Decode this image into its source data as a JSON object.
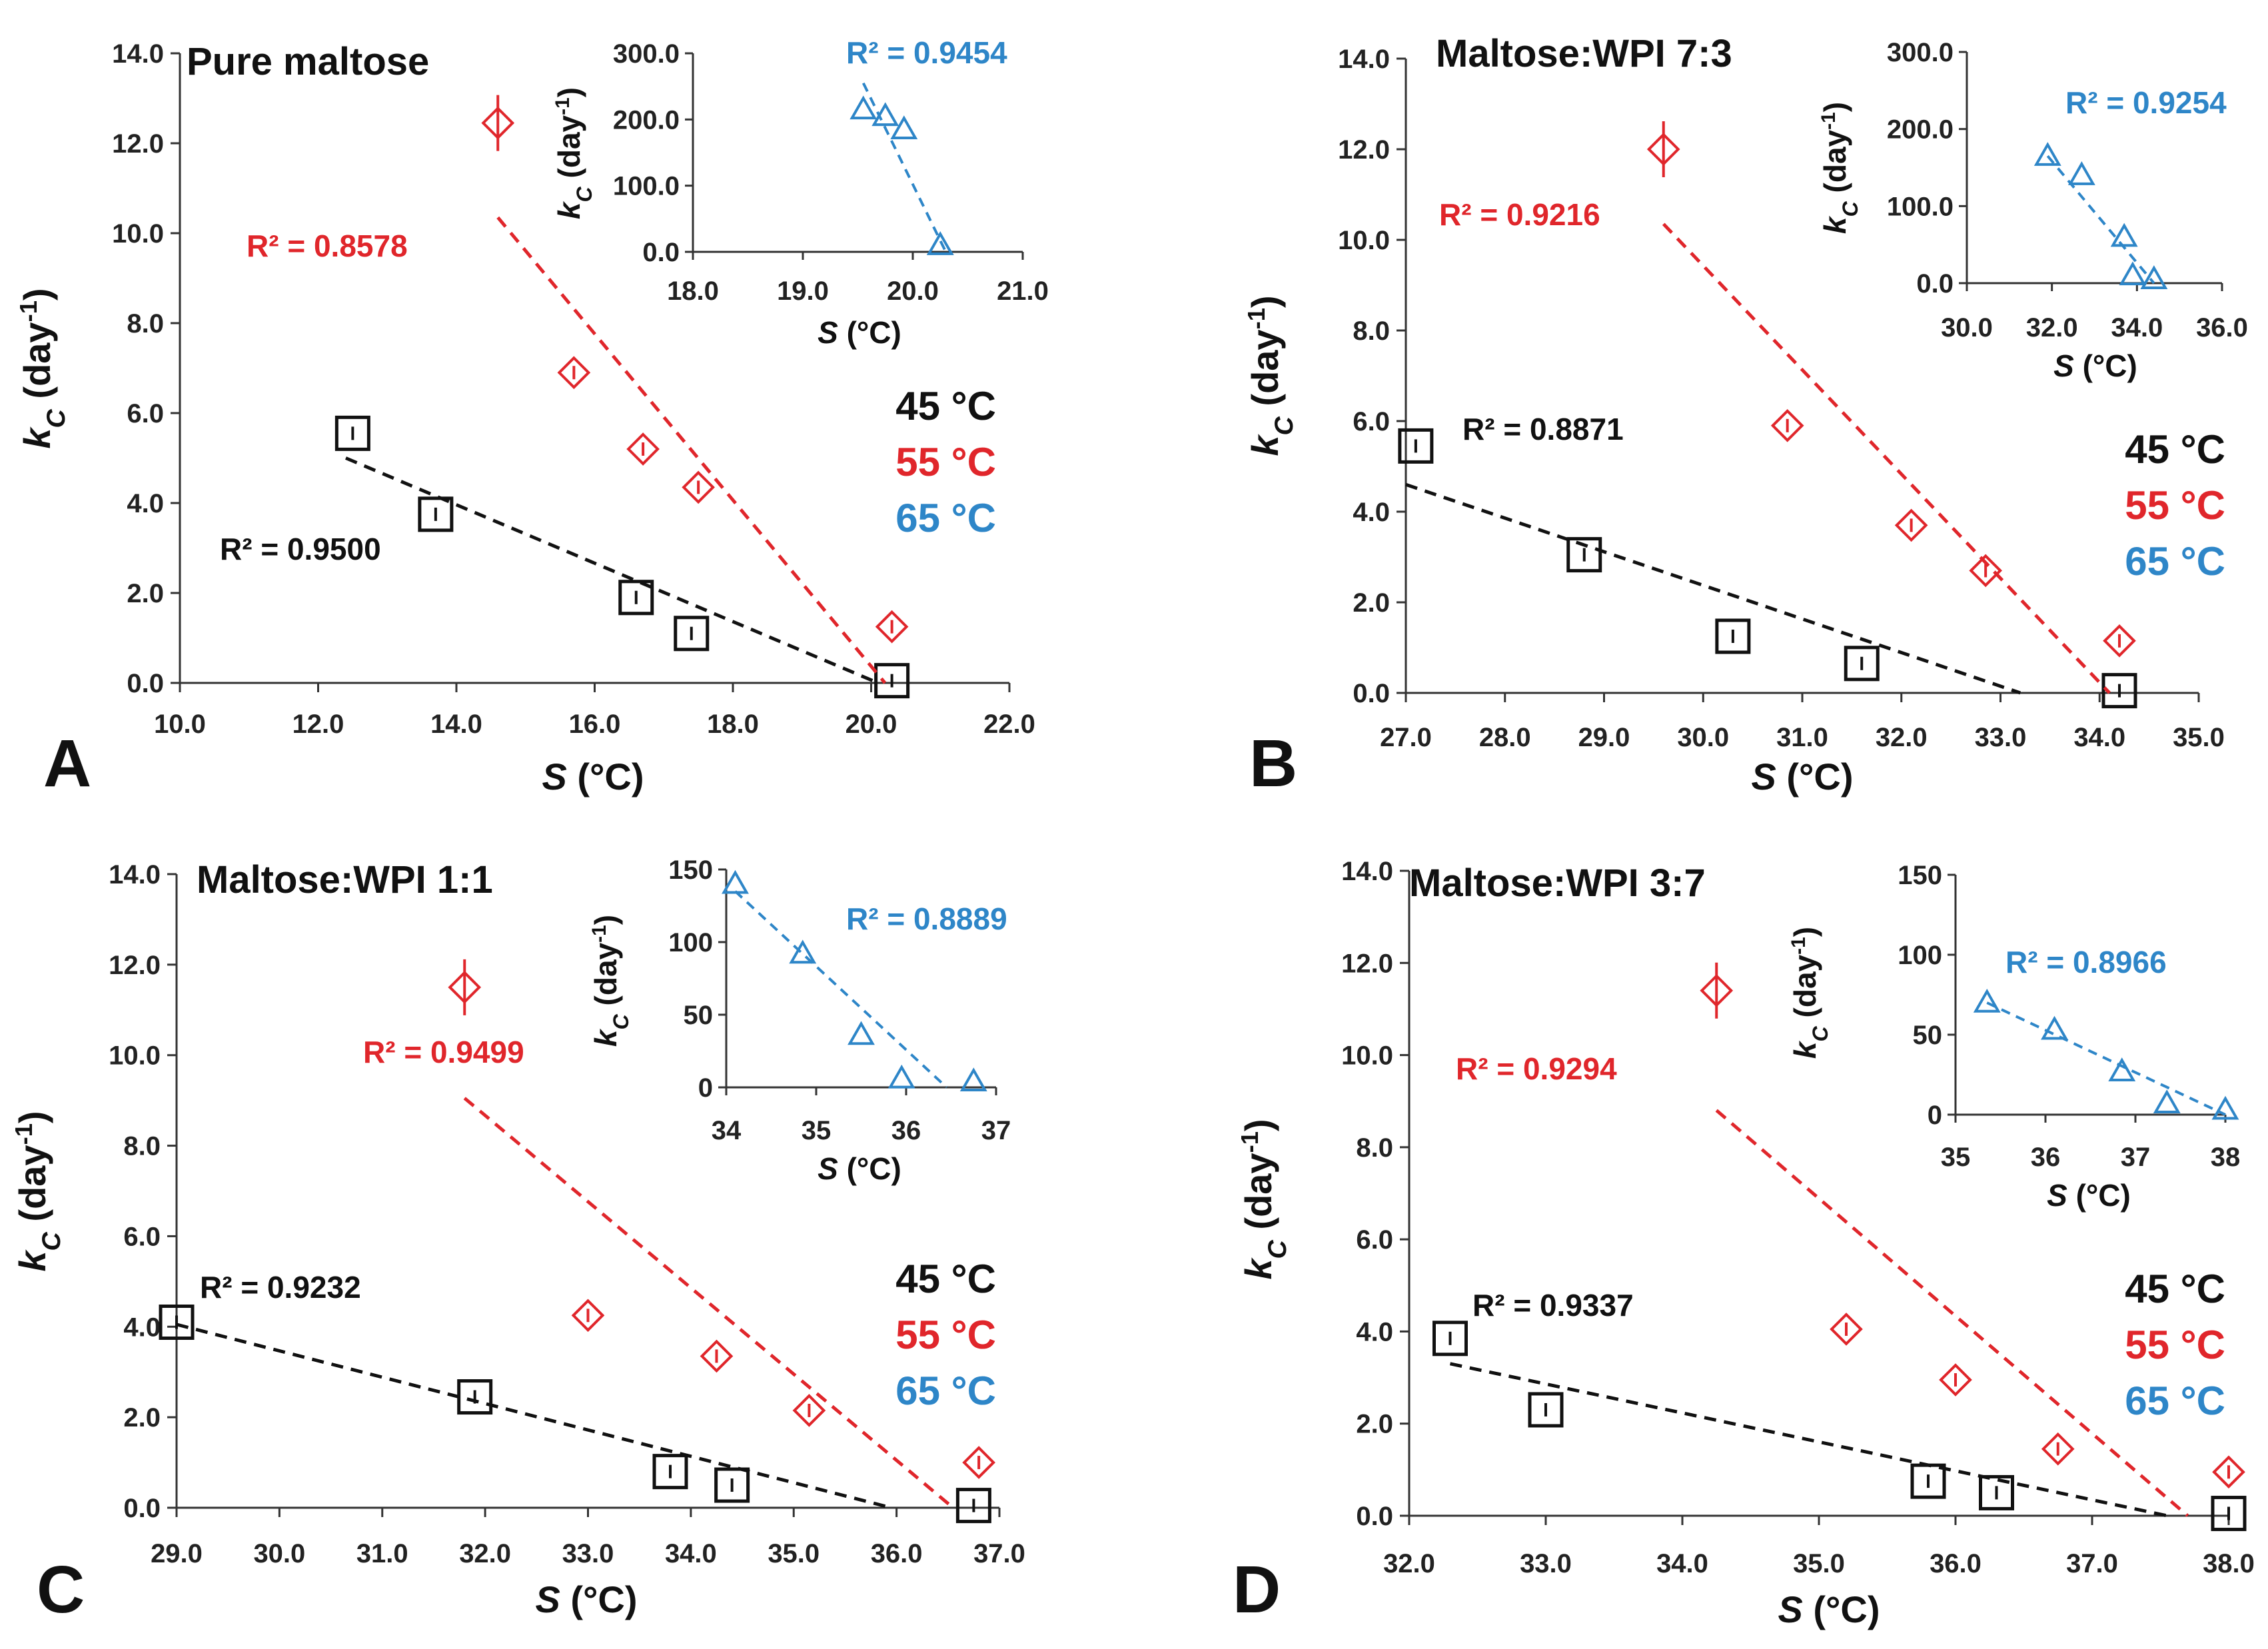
{
  "colors": {
    "black": "#111111",
    "red": "#e0262b",
    "blue": "#2e86c8"
  },
  "chart_data": [
    {
      "panel": "A",
      "type": "scatter",
      "title": "Pure maltose",
      "xlabel": "S (°C)",
      "ylabel": "kC (day-1)",
      "xlim": [
        10,
        22
      ],
      "ylim": [
        0,
        14
      ],
      "xticks": [
        10,
        12,
        14,
        16,
        18,
        20,
        22
      ],
      "xtick_labels": [
        "10.0",
        "12.0",
        "14.0",
        "16.0",
        "18.0",
        "20.0",
        "22.0"
      ],
      "ytick_labels": [
        "0.0",
        "2.0",
        "4.0",
        "6.0",
        "8.0",
        "10.0",
        "12.0",
        "14.0"
      ],
      "legend": [
        "45 °C",
        "55 °C",
        "65 °C"
      ],
      "series": [
        {
          "name": "45 °C",
          "color": "#111111",
          "marker": "square",
          "x": [
            12.5,
            13.7,
            16.6,
            17.4,
            20.3
          ],
          "y": [
            5.55,
            3.75,
            1.9,
            1.1,
            0.05
          ],
          "fit": [
            [
              12.4,
              5.0
            ],
            [
              20.1,
              0.0
            ]
          ],
          "r2_label": "R² = 0.9500"
        },
        {
          "name": "55 °C",
          "color": "#e0262b",
          "marker": "diamond",
          "x": [
            14.6,
            15.7,
            16.7,
            17.5,
            20.3
          ],
          "y": [
            12.45,
            6.9,
            5.2,
            4.35,
            1.25
          ],
          "fit": [
            [
              14.6,
              10.35
            ],
            [
              20.2,
              0.0
            ]
          ],
          "r2_label": "R² = 0.8578"
        }
      ],
      "inset": {
        "xlim": [
          18,
          21
        ],
        "ylim": [
          0,
          300
        ],
        "xticks": [
          18,
          19,
          20,
          21
        ],
        "xtick_labels": [
          "18.0",
          "19.0",
          "20.0",
          "21.0"
        ],
        "yticks": [
          0,
          100,
          200,
          300
        ],
        "ytick_labels": [
          "0.0",
          "100.0",
          "200.0",
          "300.0"
        ],
        "xlabel": "S (°C)",
        "ylabel": "kC (day-1)",
        "series": {
          "name": "65 °C",
          "color": "#2e86c8",
          "marker": "triangle",
          "x": [
            19.55,
            19.75,
            19.92,
            20.25
          ],
          "y": [
            215,
            205,
            185,
            10
          ],
          "fit": [
            [
              19.55,
              255
            ],
            [
              20.3,
              0
            ]
          ],
          "r2_label": "R² = 0.9454"
        }
      }
    },
    {
      "panel": "B",
      "type": "scatter",
      "title": "Maltose:WPI 7:3",
      "xlabel": "S (°C)",
      "ylabel": "kC (day-1)",
      "xlim": [
        27,
        35
      ],
      "ylim": [
        0,
        14
      ],
      "xticks": [
        27,
        28,
        29,
        30,
        31,
        32,
        33,
        34,
        35
      ],
      "xtick_labels": [
        "27.0",
        "28.0",
        "29.0",
        "30.0",
        "31.0",
        "32.0",
        "33.0",
        "34.0",
        "35.0"
      ],
      "ytick_labels": [
        "0.0",
        "2.0",
        "4.0",
        "6.0",
        "8.0",
        "10.0",
        "12.0",
        "14.0"
      ],
      "legend": [
        "45 °C",
        "55 °C",
        "65 °C"
      ],
      "series": [
        {
          "name": "45 °C",
          "color": "#111111",
          "marker": "square",
          "x": [
            27.1,
            28.8,
            30.3,
            31.6,
            34.2
          ],
          "y": [
            5.45,
            3.05,
            1.25,
            0.65,
            0.05
          ],
          "fit": [
            [
              27.0,
              4.6
            ],
            [
              33.2,
              0.0
            ]
          ],
          "r2_label": "R² = 0.8871"
        },
        {
          "name": "55 °C",
          "color": "#e0262b",
          "marker": "diamond",
          "x": [
            29.6,
            30.85,
            32.1,
            32.85,
            34.2
          ],
          "y": [
            12.0,
            5.9,
            3.7,
            2.7,
            1.15
          ],
          "fit": [
            [
              29.6,
              10.35
            ],
            [
              34.1,
              0.0
            ]
          ],
          "r2_label": "R² = 0.9216"
        }
      ],
      "inset": {
        "xlim": [
          30,
          36
        ],
        "ylim": [
          0,
          300
        ],
        "xticks": [
          30,
          32,
          34,
          36
        ],
        "xtick_labels": [
          "30.0",
          "32.0",
          "34.0",
          "36.0"
        ],
        "yticks": [
          0,
          100,
          200,
          300
        ],
        "ytick_labels": [
          "0.0",
          "100.0",
          "200.0",
          "300.0"
        ],
        "xlabel": "S (°C)",
        "ylabel": "kC (day-1)",
        "series": {
          "name": "65 °C",
          "color": "#2e86c8",
          "marker": "triangle",
          "x": [
            31.9,
            32.7,
            33.7,
            33.9,
            34.4
          ],
          "y": [
            165,
            140,
            60,
            10,
            5
          ],
          "fit": [
            [
              31.9,
              165
            ],
            [
              34.4,
              0
            ]
          ],
          "r2_label": "R² = 0.9254"
        }
      }
    },
    {
      "panel": "C",
      "type": "scatter",
      "title": "Maltose:WPI 1:1",
      "xlabel": "S (°C)",
      "ylabel": "kC (day-1)",
      "xlim": [
        29,
        37
      ],
      "ylim": [
        0,
        14
      ],
      "xticks": [
        29,
        30,
        31,
        32,
        33,
        34,
        35,
        36,
        37
      ],
      "xtick_labels": [
        "29.0",
        "30.0",
        "31.0",
        "32.0",
        "33.0",
        "34.0",
        "35.0",
        "36.0",
        "37.0"
      ],
      "ytick_labels": [
        "0.0",
        "2.0",
        "4.0",
        "6.0",
        "8.0",
        "10.0",
        "12.0",
        "14.0"
      ],
      "legend": [
        "45 °C",
        "55 °C",
        "65 °C"
      ],
      "series": [
        {
          "name": "45 °C",
          "color": "#111111",
          "marker": "square",
          "x": [
            29.0,
            31.9,
            33.8,
            34.4,
            36.75
          ],
          "y": [
            4.1,
            2.45,
            0.8,
            0.5,
            0.05
          ],
          "fit": [
            [
              29.0,
              4.05
            ],
            [
              35.95,
              0.0
            ]
          ],
          "r2_label": "R² = 0.9232"
        },
        {
          "name": "55 °C",
          "color": "#e0262b",
          "marker": "diamond",
          "x": [
            31.8,
            33.0,
            34.25,
            35.15,
            36.8
          ],
          "y": [
            11.5,
            4.25,
            3.35,
            2.15,
            1.0
          ],
          "fit": [
            [
              31.8,
              9.05
            ],
            [
              36.55,
              0.0
            ]
          ],
          "r2_label": "R² = 0.9499"
        }
      ],
      "inset": {
        "xlim": [
          34,
          37
        ],
        "ylim": [
          0,
          150
        ],
        "xticks": [
          34,
          35,
          36,
          37
        ],
        "xtick_labels": [
          "34",
          "35",
          "36",
          "37"
        ],
        "yticks": [
          0,
          50,
          100,
          150
        ],
        "ytick_labels": [
          "0",
          "50",
          "100",
          "150"
        ],
        "xlabel": "S (°C)",
        "ylabel": "kC (day-1)",
        "series": {
          "name": "65 °C",
          "color": "#2e86c8",
          "marker": "triangle",
          "x": [
            34.1,
            34.85,
            35.5,
            35.95,
            36.75
          ],
          "y": [
            140,
            92,
            36,
            6,
            4
          ],
          "fit": [
            [
              34.1,
              135
            ],
            [
              36.45,
              0
            ]
          ],
          "r2_label": "R² = 0.8889"
        }
      }
    },
    {
      "panel": "D",
      "type": "scatter",
      "title": "Maltose:WPI 3:7",
      "xlabel": "S (°C)",
      "ylabel": "kC (day-1)",
      "xlim": [
        32,
        38
      ],
      "ylim": [
        0,
        14
      ],
      "xticks": [
        32,
        33,
        34,
        35,
        36,
        37,
        38
      ],
      "xtick_labels": [
        "32.0",
        "33.0",
        "34.0",
        "35.0",
        "36.0",
        "37.0",
        "38.0"
      ],
      "ytick_labels": [
        "0.0",
        "2.0",
        "4.0",
        "6.0",
        "8.0",
        "10.0",
        "12.0",
        "14.0"
      ],
      "legend": [
        "45 °C",
        "55 °C",
        "65 °C"
      ],
      "series": [
        {
          "name": "45 °C",
          "color": "#111111",
          "marker": "square",
          "x": [
            32.3,
            33.0,
            35.8,
            36.3,
            38.0
          ],
          "y": [
            3.85,
            2.3,
            0.75,
            0.5,
            0.05
          ],
          "fit": [
            [
              32.3,
              3.3
            ],
            [
              37.55,
              0.0
            ]
          ],
          "r2_label": "R² = 0.9337"
        },
        {
          "name": "55 °C",
          "color": "#e0262b",
          "marker": "diamond",
          "x": [
            34.25,
            35.2,
            36.0,
            36.75,
            38.0
          ],
          "y": [
            11.4,
            4.05,
            2.95,
            1.45,
            0.95
          ],
          "fit": [
            [
              34.25,
              8.8
            ],
            [
              37.7,
              0.0
            ]
          ],
          "r2_label": "R² = 0.9294"
        }
      ],
      "inset": {
        "xlim": [
          35,
          38
        ],
        "ylim": [
          0,
          150
        ],
        "xticks": [
          35,
          36,
          37,
          38
        ],
        "xtick_labels": [
          "35",
          "36",
          "37",
          "38"
        ],
        "yticks": [
          0,
          50,
          100,
          150
        ],
        "ytick_labels": [
          "0",
          "50",
          "100",
          "150"
        ],
        "xlabel": "S (°C)",
        "ylabel": "kC (day-1)",
        "series": {
          "name": "65 °C",
          "color": "#2e86c8",
          "marker": "triangle",
          "x": [
            35.35,
            36.1,
            36.85,
            37.35,
            38.0
          ],
          "y": [
            70,
            53,
            27,
            7,
            3
          ],
          "fit": [
            [
              35.35,
              70
            ],
            [
              38.0,
              0
            ]
          ],
          "r2_label": "R² = 0.8966"
        }
      }
    }
  ]
}
